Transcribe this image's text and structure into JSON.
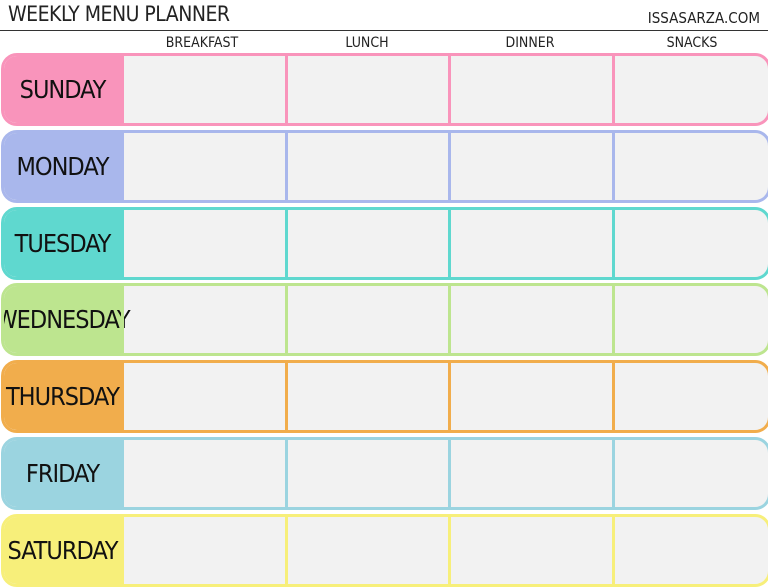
{
  "header": {
    "title": "WEEKLY MENU PLANNER",
    "site": "ISSASARZA.COM"
  },
  "columns": [
    "BREAKFAST",
    "LUNCH",
    "DINNER",
    "SNACKS"
  ],
  "days": [
    {
      "label": "SUNDAY",
      "color": "#f994bb"
    },
    {
      "label": "MONDAY",
      "color": "#a9b7ec"
    },
    {
      "label": "TUESDAY",
      "color": "#5fd8cf"
    },
    {
      "label": "WEDNESDAY",
      "color": "#bde58f"
    },
    {
      "label": "THURSDAY",
      "color": "#f1ad4c"
    },
    {
      "label": "FRIDAY",
      "color": "#9bd4e0"
    },
    {
      "label": "SATURDAY",
      "color": "#f7ef7a"
    }
  ]
}
